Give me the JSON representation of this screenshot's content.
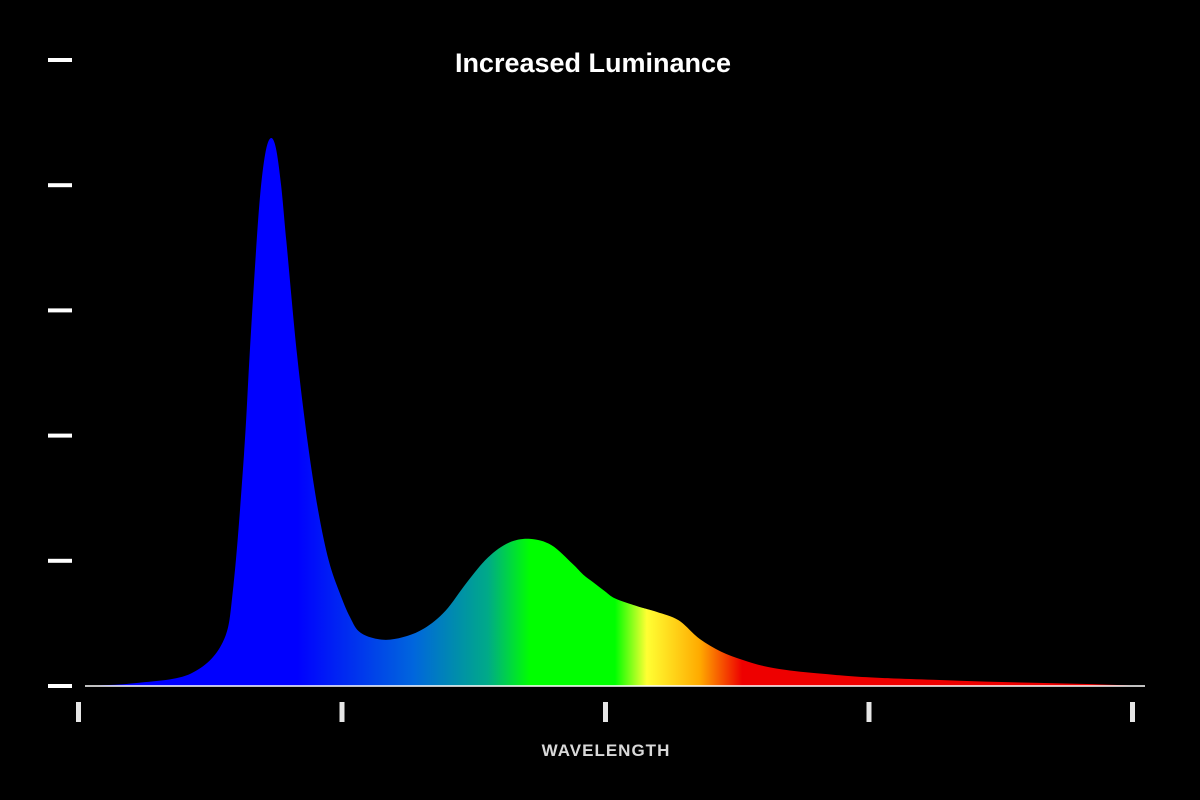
{
  "chart_data": {
    "type": "area",
    "title": "Increased Luminance",
    "xlabel": "WAVELENGTH",
    "ylabel": "",
    "x_tick_count": 5,
    "y_tick_count": 6,
    "xlim": [
      0,
      1
    ],
    "ylim": [
      0,
      1
    ],
    "grid": false,
    "legend": "none",
    "gradient_colors": [
      "#0000ff",
      "#0000ff",
      "#0066dd",
      "#00aa88",
      "#00ff00",
      "#00ff00",
      "#ffff33",
      "#ffaa00",
      "#ee0000",
      "#ee0000"
    ],
    "series": [
      {
        "x": [
          0.0,
          0.05,
          0.1,
          0.13,
          0.14,
          0.15,
          0.155,
          0.16,
          0.165,
          0.17,
          0.175,
          0.18,
          0.185,
          0.19,
          0.2,
          0.21,
          0.22,
          0.23,
          0.24,
          0.25,
          0.26,
          0.28,
          0.3,
          0.32,
          0.34,
          0.36,
          0.38,
          0.4,
          0.42,
          0.44,
          0.46,
          0.47,
          0.48,
          0.49,
          0.5,
          0.52,
          0.53,
          0.54,
          0.56,
          0.58,
          0.6,
          0.62,
          0.64,
          0.66,
          0.68,
          0.7,
          0.72,
          0.75,
          0.8,
          0.85,
          0.9,
          0.95,
          1.0
        ],
        "y": [
          0.0,
          0.005,
          0.02,
          0.07,
          0.16,
          0.37,
          0.52,
          0.66,
          0.78,
          0.85,
          0.875,
          0.86,
          0.8,
          0.71,
          0.53,
          0.39,
          0.28,
          0.2,
          0.15,
          0.11,
          0.085,
          0.074,
          0.078,
          0.092,
          0.12,
          0.165,
          0.205,
          0.229,
          0.235,
          0.225,
          0.195,
          0.178,
          0.165,
          0.152,
          0.14,
          0.128,
          0.123,
          0.118,
          0.105,
          0.075,
          0.055,
          0.042,
          0.032,
          0.026,
          0.022,
          0.019,
          0.016,
          0.013,
          0.01,
          0.007,
          0.005,
          0.003,
          0.0
        ]
      }
    ]
  }
}
